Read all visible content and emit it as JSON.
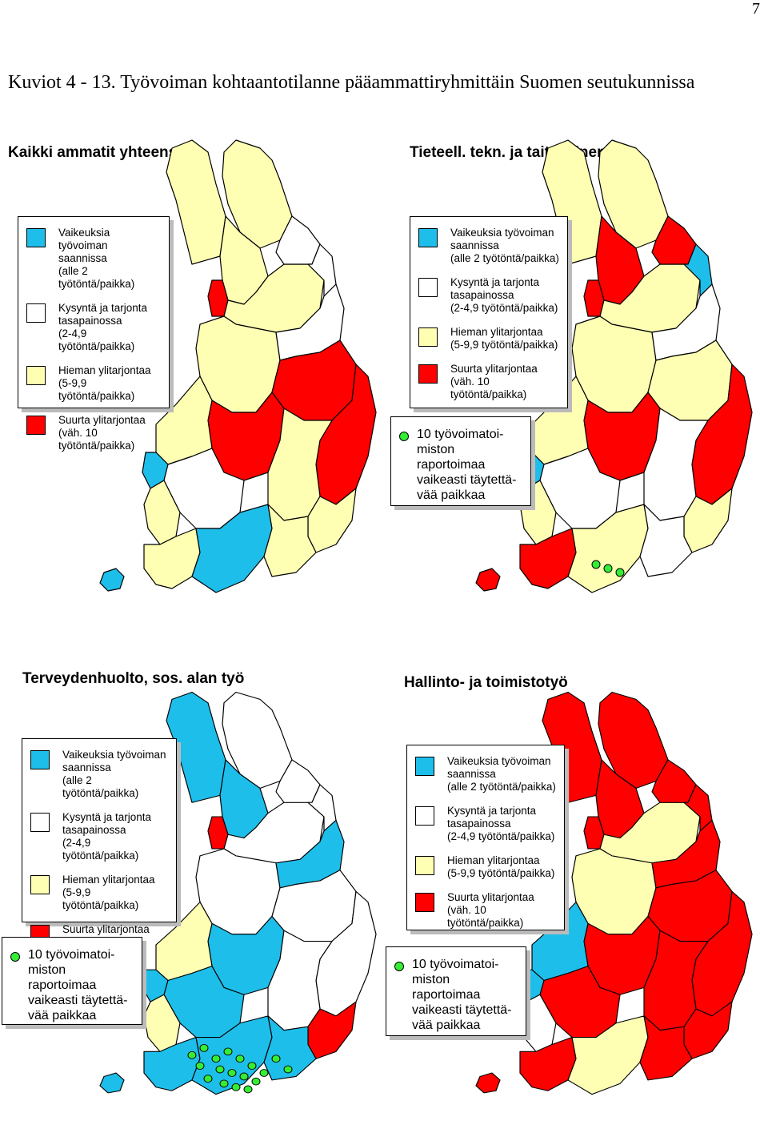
{
  "page_number": "7",
  "figure_title": "Kuviot 4 - 13.  Työvoiman kohtaantotilanne pääammattiryhmittäin Suomen seutukunnissa",
  "colors": {
    "blue": "#1ebeea",
    "white": "#ffffff",
    "yellow": "#ffffb4",
    "red": "#ff0000",
    "green_dot": "#33ee33",
    "outline": "#000000"
  },
  "legend": {
    "items": [
      {
        "color_key": "blue",
        "lines": [
          "Vaikeuksia työvoiman",
          "saannissa",
          "(alle 2 työtöntä/paikka)"
        ]
      },
      {
        "color_key": "white",
        "lines": [
          "Kysyntä ja tarjonta",
          "tasapainossa",
          "(2-4,9 työtöntä/paikka)"
        ]
      },
      {
        "color_key": "yellow",
        "lines": [
          "Hieman ylitarjontaa",
          "(5-9,9 työtöntä/paikka)"
        ]
      },
      {
        "color_key": "red",
        "lines": [
          "Suurta ylitarjontaa",
          "(väh. 10 työtöntä/paikka)"
        ]
      }
    ]
  },
  "note": {
    "lines": [
      "10 työvoimatoi-",
      "miston raportoimaa",
      "vaikeasti täytettä-",
      "vää paikkaa"
    ]
  },
  "panels": [
    {
      "title": "Kaikki ammatit yhteensä",
      "show_note": false,
      "regions": {
        "lapland_nw": "yellow",
        "lapland_ne": "yellow",
        "kittila": "yellow",
        "tornio": "red",
        "rovaniemi": "yellow",
        "kemijarvi": "white",
        "salla": "white",
        "oulu": "yellow",
        "koillismaa": "white",
        "kainuu": "red",
        "north_kar": "red",
        "central_fi": "red",
        "savo": "yellow",
        "south_kar": "yellow",
        "ostro": "yellow",
        "pirkanmaa": "white",
        "satakunta": "yellow",
        "southwest": "yellow",
        "uusimaa": "blue",
        "kymi": "yellow",
        "aland": "blue",
        "vaasa_coast": "blue"
      },
      "dots": 0
    },
    {
      "title": "Tieteell. tekn. ja taiteellinen työ",
      "show_note": true,
      "regions": {
        "lapland_nw": "yellow",
        "lapland_ne": "yellow",
        "kittila": "red",
        "tornio": "red",
        "rovaniemi": "yellow",
        "kemijarvi": "red",
        "salla": "blue",
        "oulu": "yellow",
        "koillismaa": "white",
        "kainuu": "yellow",
        "north_kar": "red",
        "central_fi": "red",
        "savo": "white",
        "south_kar": "yellow",
        "ostro": "yellow",
        "pirkanmaa": "white",
        "satakunta": "yellow",
        "southwest": "red",
        "uusimaa": "yellow",
        "kymi": "white",
        "aland": "red",
        "vaasa_coast": "blue"
      },
      "dots": 3
    },
    {
      "title": "Terveydenhuolto, sos. alan työ",
      "show_note": true,
      "regions": {
        "lapland_nw": "blue",
        "lapland_ne": "white",
        "kittila": "blue",
        "tornio": "red",
        "rovaniemi": "white",
        "kemijarvi": "white",
        "salla": "white",
        "oulu": "white",
        "koillismaa": "blue",
        "kainuu": "white",
        "north_kar": "white",
        "central_fi": "blue",
        "savo": "white",
        "south_kar": "red",
        "ostro": "yellow",
        "pirkanmaa": "blue",
        "satakunta": "yellow",
        "southwest": "blue",
        "uusimaa": "blue",
        "kymi": "blue",
        "aland": "blue",
        "vaasa_coast": "blue"
      },
      "dots": 18
    },
    {
      "title": "Hallinto- ja toimistotyö",
      "show_note": true,
      "regions": {
        "lapland_nw": "red",
        "lapland_ne": "red",
        "kittila": "red",
        "tornio": "red",
        "rovaniemi": "yellow",
        "kemijarvi": "red",
        "salla": "red",
        "oulu": "yellow",
        "koillismaa": "red",
        "kainuu": "red",
        "north_kar": "red",
        "central_fi": "red",
        "savo": "red",
        "south_kar": "red",
        "ostro": "blue",
        "pirkanmaa": "red",
        "satakunta": "white",
        "southwest": "red",
        "uusimaa": "yellow",
        "kymi": "red",
        "aland": "red",
        "vaasa_coast": "blue"
      },
      "dots": 0
    }
  ]
}
